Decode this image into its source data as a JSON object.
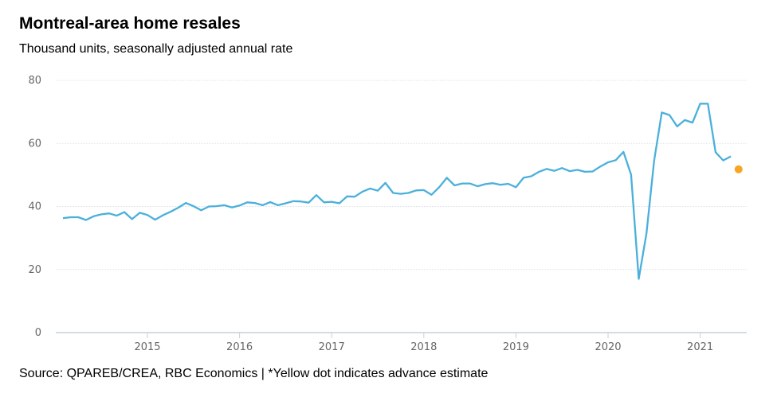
{
  "title": "Montreal-area home resales",
  "subtitle": "Thousand units, seasonally adjusted annual rate",
  "source": "Source: QPAREB/CREA, RBC Economics | *Yellow dot indicates advance estimate",
  "chart_data": {
    "type": "line",
    "title": "Montreal-area home resales",
    "subtitle": "Thousand units, seasonally adjusted annual rate",
    "xlabel": "",
    "ylabel": "",
    "ylim": [
      0,
      80
    ],
    "yticks": [
      0,
      20,
      40,
      60,
      80
    ],
    "xticks": [
      "2015",
      "2016",
      "2017",
      "2018",
      "2019",
      "2020",
      "2021"
    ],
    "x_start": "2014-02",
    "grid": true,
    "legend": "none",
    "series": [
      {
        "color": "#4ab0db",
        "values": [
          36.3,
          36.6,
          36.6,
          35.7,
          36.9,
          37.5,
          37.8,
          37.1,
          38.2,
          36.0,
          38.0,
          37.3,
          35.8,
          37.2,
          38.3,
          39.6,
          41.1,
          40.1,
          38.8,
          40.0,
          40.1,
          40.4,
          39.7,
          40.3,
          41.3,
          41.1,
          40.4,
          41.4,
          40.4,
          41.0,
          41.7,
          41.6,
          41.2,
          43.6,
          41.3,
          41.5,
          41.0,
          43.2,
          43.1,
          44.7,
          45.7,
          45.0,
          47.5,
          44.3,
          44.0,
          44.3,
          45.1,
          45.2,
          43.7,
          46.1,
          49.1,
          46.7,
          47.3,
          47.3,
          46.4,
          47.1,
          47.4,
          46.9,
          47.2,
          46.1,
          49.1,
          49.6,
          51.0,
          51.9,
          51.3,
          52.2,
          51.2,
          51.6,
          51.0,
          51.1,
          52.7,
          54.0,
          54.7,
          57.3,
          50.1,
          17.0,
          31.5,
          54.5,
          69.8,
          69.0,
          65.4,
          67.4,
          66.6,
          72.6,
          72.6,
          57.2,
          54.6,
          55.9
        ]
      },
      {
        "name": "*advance estimate",
        "color": "#f5a623",
        "x": "2021-06",
        "values": [
          51.8
        ]
      }
    ]
  }
}
